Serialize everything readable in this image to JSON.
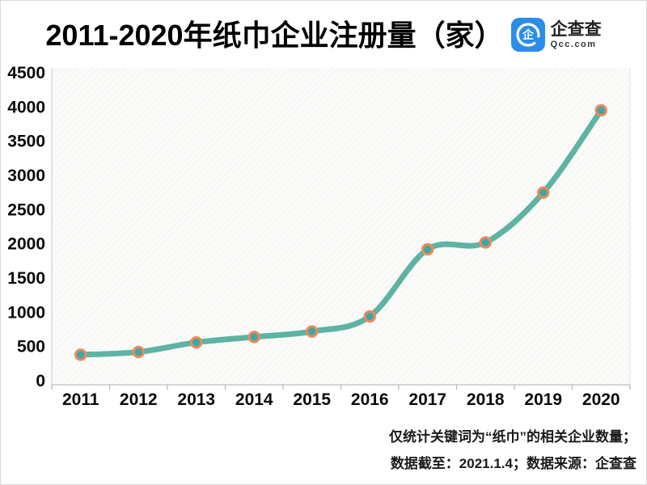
{
  "page": {
    "title": "2011-2020年纸巾企业注册量（家）",
    "logo": {
      "name": "企查查",
      "domain": "Qcc.com",
      "brand_color": "#2B8DE9"
    },
    "footnote_line1": "仅统计关键词为“纸巾”的相关企业数量；",
    "footnote_line2": "数据截至：2021.1.4；数据来源：企查查"
  },
  "chart_data": {
    "type": "line",
    "title": "2011-2020年纸巾企业注册量（家）",
    "series_name": "纸巾企业注册量（家）",
    "categories": [
      "2011",
      "2012",
      "2013",
      "2014",
      "2015",
      "2016",
      "2017",
      "2018",
      "2019",
      "2020"
    ],
    "values": [
      380,
      420,
      560,
      640,
      720,
      940,
      1920,
      2020,
      2750,
      3950
    ],
    "ylim": [
      0,
      4500
    ],
    "y_ticks": [
      0,
      500,
      1000,
      1500,
      2000,
      2500,
      3000,
      3500,
      4000,
      4500
    ],
    "grid": false,
    "legend": "none",
    "line_color": "#4FAC9C",
    "marker_fill": "#3EA6A6",
    "marker_ring": "#EC8A57",
    "axis_color": "#c8c8c8",
    "tick_color": "#b5b5b5",
    "label_color": "#0a0a0a",
    "plot_hatch_color": "#edece8"
  }
}
